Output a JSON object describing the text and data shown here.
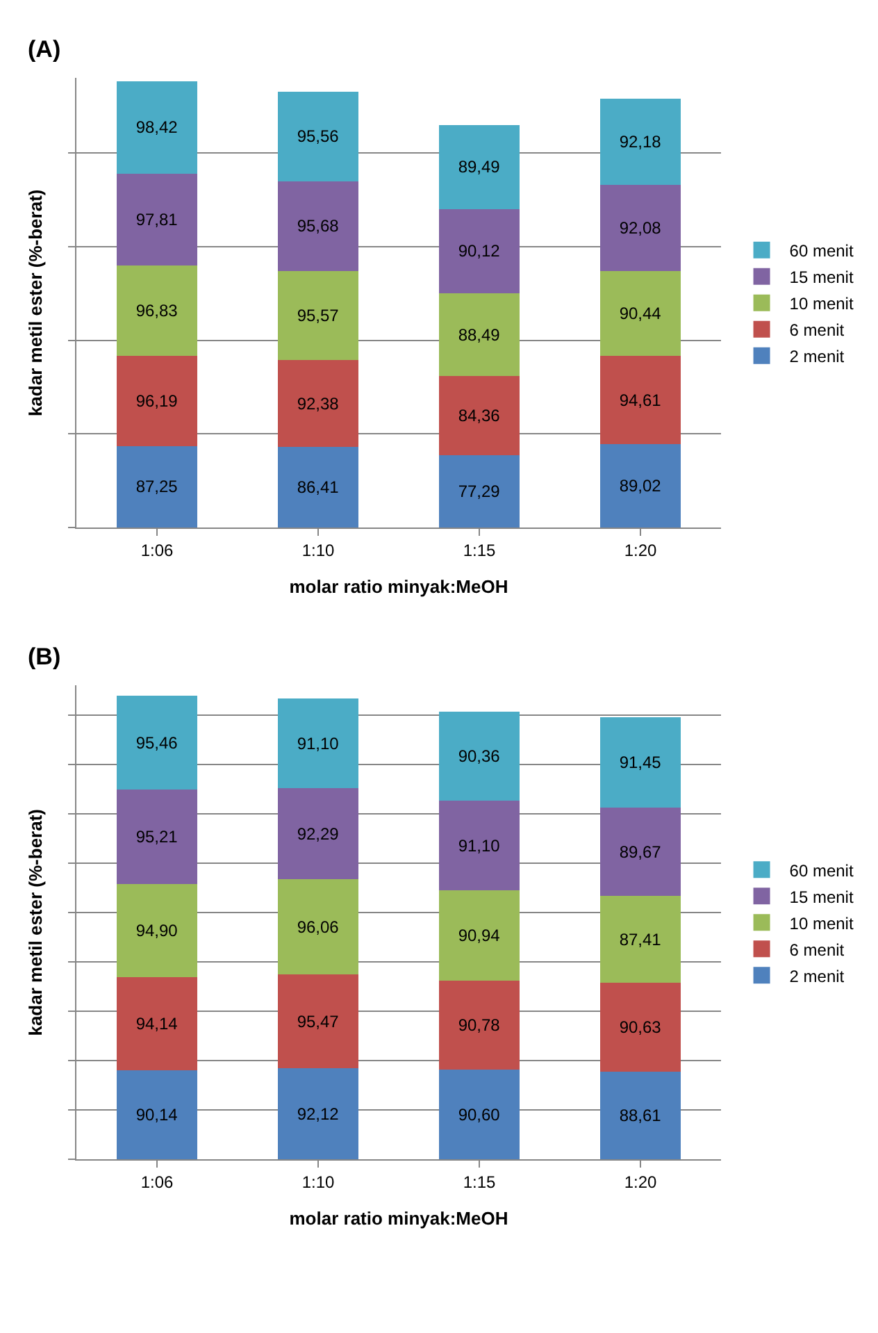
{
  "chart_data": [
    {
      "type": "bar",
      "title": "(A)",
      "xlabel": "molar ratio minyak:MeOH",
      "ylabel": "kadar metil ester (%-berat)",
      "categories": [
        "1:06",
        "1:10",
        "1:15",
        "1:20"
      ],
      "stacked": true,
      "ylim": [
        0,
        480
      ],
      "yticks": [
        {
          "value": 0,
          "label": null
        },
        {
          "value": 100,
          "label": null
        },
        {
          "value": 200,
          "label": null
        },
        {
          "value": 300,
          "label": null
        },
        {
          "value": 400,
          "label": null
        }
      ],
      "tick_labels": "x",
      "grid": "y",
      "legend": "right",
      "series": [
        {
          "name": "2 menit",
          "color": "#4f81bd",
          "values": [
            87.25,
            86.41,
            77.29,
            89.02
          ],
          "value_labels": [
            "87,25",
            "86,41",
            "77,29",
            "89,02"
          ]
        },
        {
          "name": "6 menit",
          "color": "#c0504d",
          "values": [
            96.19,
            92.38,
            84.36,
            94.61
          ],
          "value_labels": [
            "96,19",
            "92,38",
            "84,36",
            "94,61"
          ]
        },
        {
          "name": "10 menit",
          "color": "#9bbb59",
          "values": [
            96.83,
            95.57,
            88.49,
            90.44
          ],
          "value_labels": [
            "96,83",
            "95,57",
            "88,49",
            "90,44"
          ]
        },
        {
          "name": "15 menit",
          "color": "#8064a2",
          "values": [
            97.81,
            95.68,
            90.12,
            92.08
          ],
          "value_labels": [
            "97,81",
            "95,68",
            "90,12",
            "92,08"
          ]
        },
        {
          "name": "60 menit",
          "color": "#4bacc6",
          "values": [
            98.42,
            95.56,
            89.49,
            92.18
          ],
          "value_labels": [
            "98,42",
            "95,56",
            "89,49",
            "92,18"
          ]
        }
      ]
    },
    {
      "type": "bar",
      "title": "(B)",
      "xlabel": "molar ratio minyak:MeOH",
      "ylabel": "kadar metil ester (%-berat)",
      "categories": [
        "1:06",
        "1:10",
        "1:15",
        "1:20"
      ],
      "stacked": true,
      "ylim": [
        0,
        480
      ],
      "yticks": [
        {
          "value": 0,
          "label": null
        },
        {
          "value": 50,
          "label": null
        },
        {
          "value": 100,
          "label": null
        },
        {
          "value": 150,
          "label": null
        },
        {
          "value": 200,
          "label": null
        },
        {
          "value": 250,
          "label": null
        },
        {
          "value": 300,
          "label": null
        },
        {
          "value": 350,
          "label": null
        },
        {
          "value": 400,
          "label": null
        },
        {
          "value": 450,
          "label": null
        }
      ],
      "tick_labels": "x",
      "grid": "y",
      "legend": "right",
      "series": [
        {
          "name": "2 menit",
          "color": "#4f81bd",
          "values": [
            90.14,
            92.12,
            90.6,
            88.61
          ],
          "value_labels": [
            "90,14",
            "92,12",
            "90,60",
            "88,61"
          ]
        },
        {
          "name": "6 menit",
          "color": "#c0504d",
          "values": [
            94.14,
            95.47,
            90.78,
            90.63
          ],
          "value_labels": [
            "94,14",
            "95,47",
            "90,78",
            "90,63"
          ]
        },
        {
          "name": "10 menit",
          "color": "#9bbb59",
          "values": [
            94.9,
            96.06,
            90.94,
            87.41
          ],
          "value_labels": [
            "94,90",
            "96,06",
            "90,94",
            "87,41"
          ]
        },
        {
          "name": "15 menit",
          "color": "#8064a2",
          "values": [
            95.21,
            92.29,
            91.1,
            89.67
          ],
          "value_labels": [
            "95,21",
            "92,29",
            "91,10",
            "89,67"
          ]
        },
        {
          "name": "60 menit",
          "color": "#4bacc6",
          "values": [
            95.46,
            91.1,
            90.36,
            91.45
          ],
          "value_labels": [
            "95,46",
            "91,10",
            "90,36",
            "91,45"
          ]
        }
      ]
    }
  ]
}
